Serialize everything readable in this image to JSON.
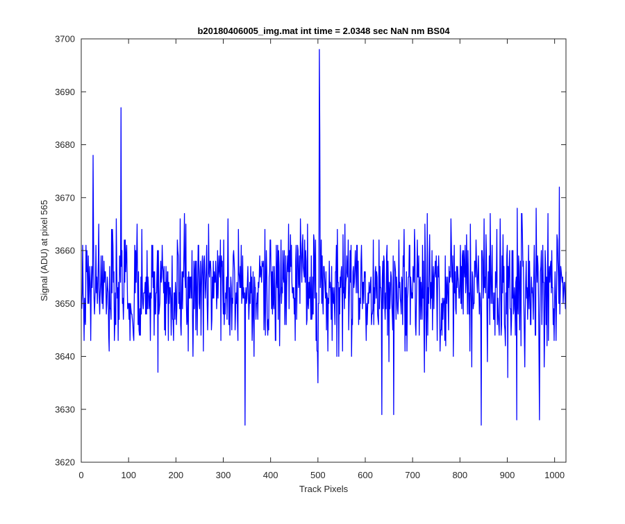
{
  "chart_data": {
    "type": "line",
    "title": "b20180406005_img.mat int time = 2.0348 sec  NaN nm BS04",
    "xlabel": "Track Pixels",
    "ylabel": "Signal (ADU) at pixel 565",
    "xlim": [
      0,
      1024
    ],
    "ylim": [
      3620,
      3700
    ],
    "xticks": [
      0,
      100,
      200,
      300,
      400,
      500,
      600,
      700,
      800,
      900,
      1000
    ],
    "yticks": [
      3620,
      3630,
      3640,
      3650,
      3660,
      3670,
      3680,
      3690,
      3700
    ],
    "grid": false,
    "legend": "none",
    "series": [
      {
        "color": "#0000ff",
        "x_start": 1,
        "x_step": 1,
        "count": 1024,
        "mean": 3653,
        "std": 5.5,
        "notable_points": [
          {
            "x": 25,
            "y": 3678
          },
          {
            "x": 84,
            "y": 3687
          },
          {
            "x": 346,
            "y": 3627
          },
          {
            "x": 500,
            "y": 3635
          },
          {
            "x": 503,
            "y": 3698
          },
          {
            "x": 504,
            "y": 3682
          },
          {
            "x": 635,
            "y": 3629
          },
          {
            "x": 660,
            "y": 3629
          },
          {
            "x": 845,
            "y": 3627
          },
          {
            "x": 920,
            "y": 3628
          },
          {
            "x": 968,
            "y": 3628
          },
          {
            "x": 1010,
            "y": 3672
          }
        ]
      }
    ]
  },
  "colors": {
    "line": "#0000ff",
    "axes": "#262626",
    "background": "#ffffff"
  }
}
